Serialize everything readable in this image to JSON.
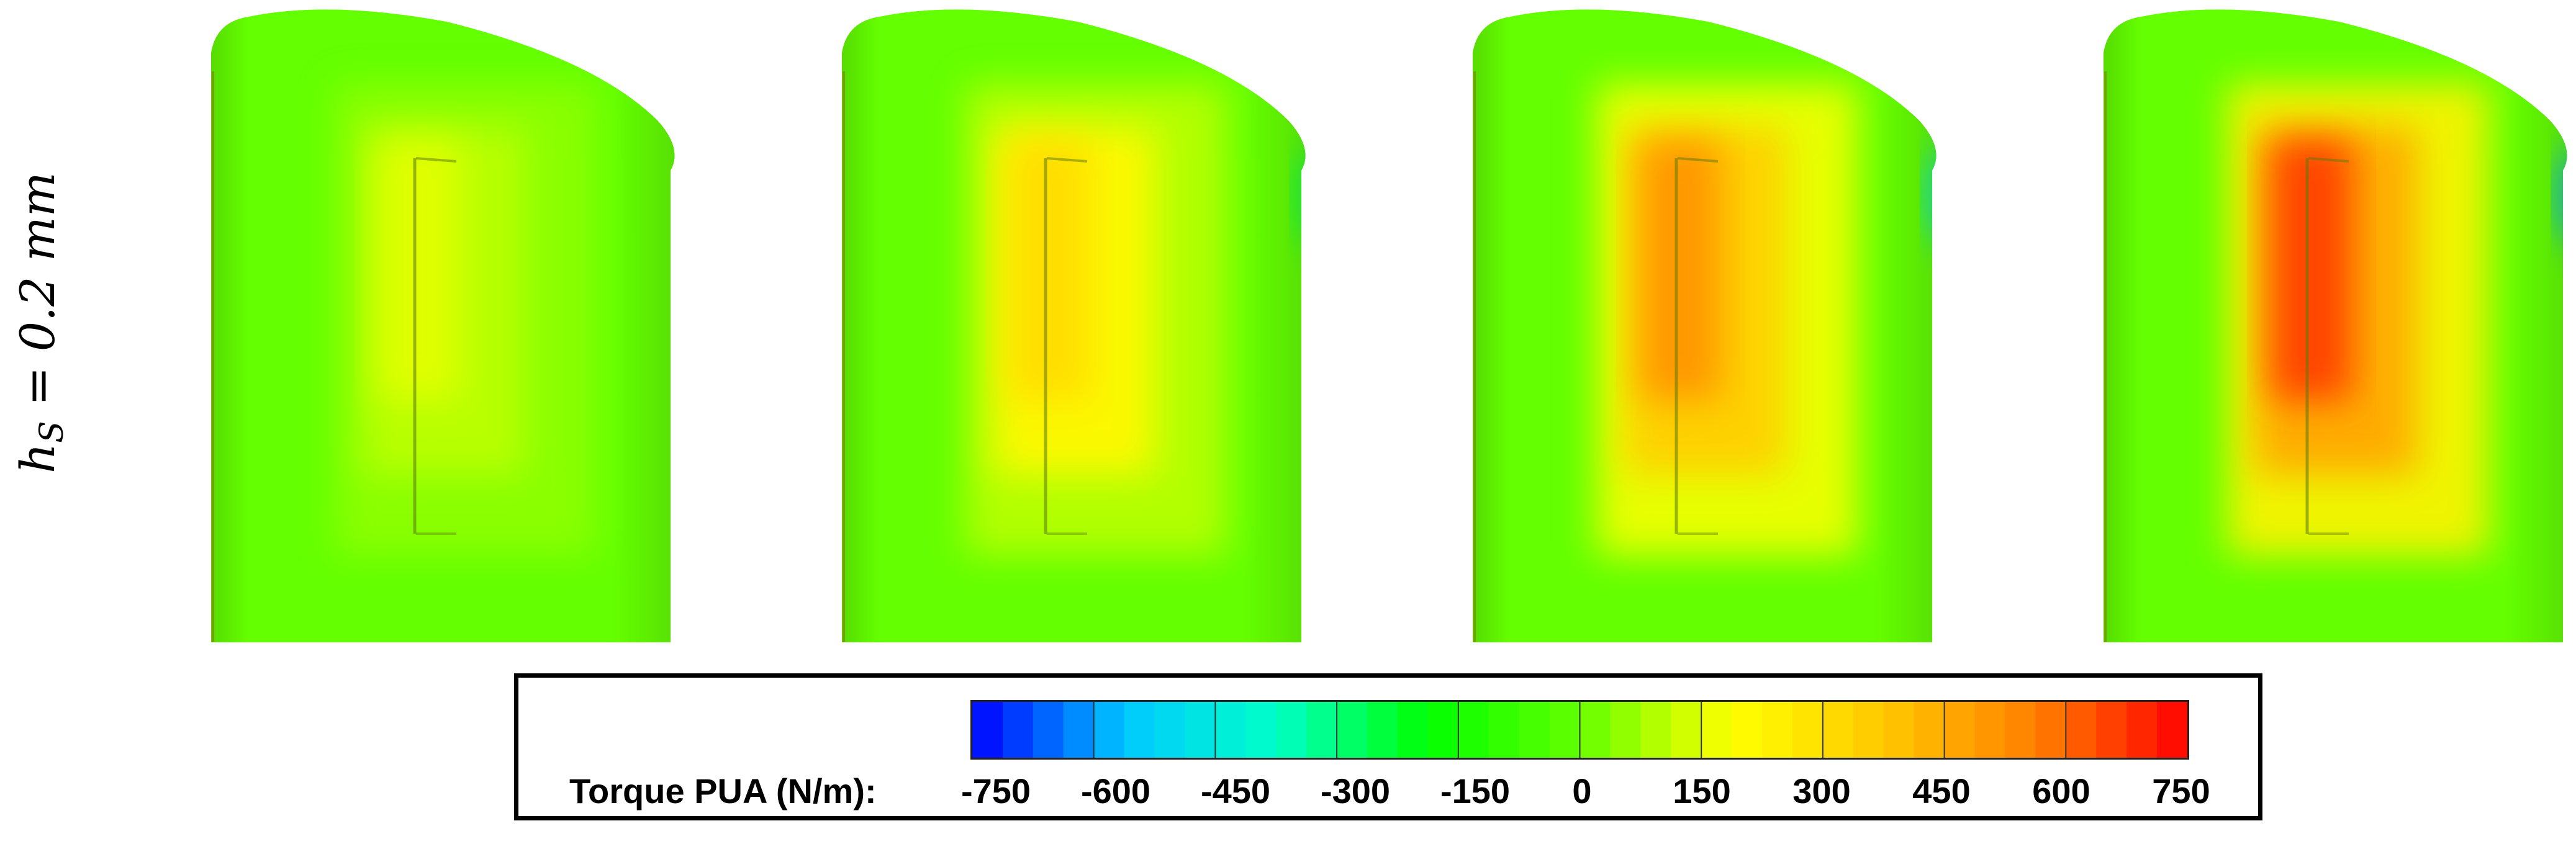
{
  "row_label": {
    "variable": "h",
    "subscript": "S",
    "relation": " = 0.2 mm"
  },
  "panels": [
    {
      "id": "panel-1",
      "peak_torque_pua": 150
    },
    {
      "id": "panel-2",
      "peak_torque_pua": 300
    },
    {
      "id": "panel-3",
      "peak_torque_pua": 500
    },
    {
      "id": "panel-4",
      "peak_torque_pua": 650
    }
  ],
  "colorbar": {
    "title": "Torque PUA (N/m):",
    "min": -750,
    "max": 750,
    "ticks": [
      "-750",
      "-600",
      "-450",
      "-300",
      "-150",
      "0",
      "150",
      "300",
      "450",
      "600",
      "750"
    ],
    "colors": [
      "#0000ff",
      "#00c8ff",
      "#00ffc8",
      "#00ff00",
      "#64ff00",
      "#ffff00",
      "#ffc800",
      "#ff8000",
      "#ff0000"
    ]
  }
}
